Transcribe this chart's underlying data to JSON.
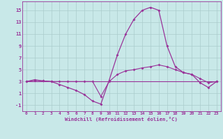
{
  "xlabel": "Windchill (Refroidissement éolien,°C)",
  "bg_color": "#c8e8e8",
  "grid_color": "#aacccc",
  "line_color": "#993399",
  "xlim": [
    -0.5,
    23.5
  ],
  "ylim": [
    -2.0,
    16.5
  ],
  "yticks": [
    -1,
    1,
    3,
    5,
    7,
    9,
    11,
    13,
    15
  ],
  "xticks": [
    0,
    1,
    2,
    3,
    4,
    5,
    6,
    7,
    8,
    9,
    10,
    11,
    12,
    13,
    14,
    15,
    16,
    17,
    18,
    19,
    20,
    21,
    22,
    23
  ],
  "series1_x": [
    0,
    1,
    2,
    3,
    4,
    5,
    6,
    7,
    8,
    9,
    10,
    11,
    12,
    13,
    14,
    15,
    16,
    17,
    18,
    19,
    20,
    21,
    22,
    23
  ],
  "series1_y": [
    3.0,
    3.3,
    3.1,
    3.0,
    2.5,
    2.0,
    1.5,
    0.8,
    -0.3,
    -0.8,
    3.2,
    7.5,
    11.0,
    13.5,
    15.0,
    15.5,
    15.0,
    9.0,
    5.5,
    4.5,
    4.2,
    2.8,
    2.0,
    3.0
  ],
  "series2_x": [
    0,
    1,
    2,
    3,
    4,
    5,
    6,
    7,
    8,
    9,
    10,
    11,
    12,
    13,
    14,
    15,
    16,
    17,
    18,
    19,
    20,
    21,
    22,
    23
  ],
  "series2_y": [
    3.0,
    3.2,
    3.1,
    3.0,
    3.0,
    3.0,
    3.0,
    3.0,
    3.0,
    0.5,
    3.0,
    4.2,
    4.8,
    5.0,
    5.3,
    5.5,
    5.8,
    5.5,
    5.0,
    4.5,
    4.2,
    3.5,
    2.8,
    3.0
  ],
  "series3_x": [
    0,
    23
  ],
  "series3_y": [
    3.0,
    3.0
  ]
}
